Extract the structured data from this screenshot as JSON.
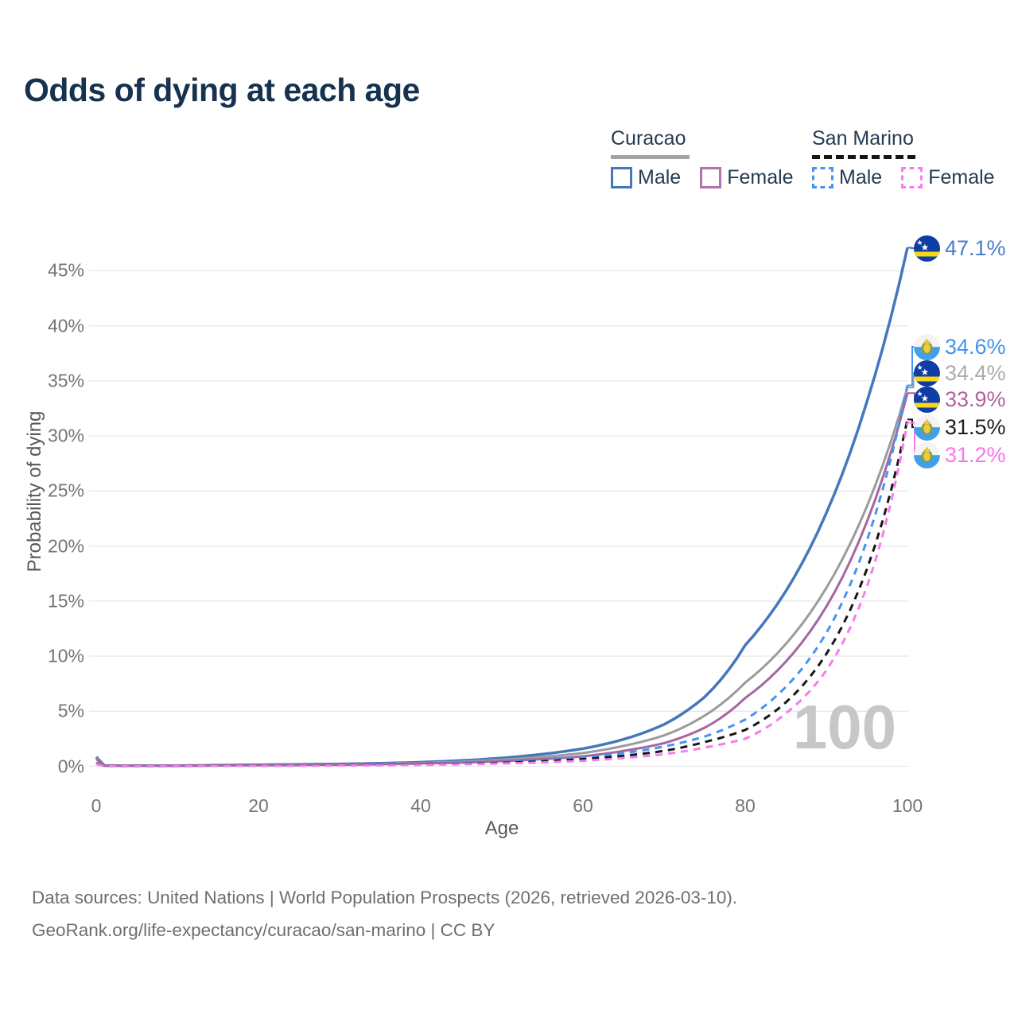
{
  "title": "Odds of dying at each age",
  "legend": {
    "groups": [
      {
        "label": "Curacao",
        "line_style": "solid",
        "line_color": "#a3a3a3",
        "items": [
          {
            "label": "Male",
            "color": "#4577bd",
            "dashed": false
          },
          {
            "label": "Female",
            "color": "#b273ab",
            "dashed": false
          }
        ]
      },
      {
        "label": "San Marino",
        "line_style": "dashed",
        "line_color": "#161616",
        "items": [
          {
            "label": "Male",
            "color": "#4694f1",
            "dashed": true
          },
          {
            "label": "Female",
            "color": "#fb7bf0",
            "dashed": true
          }
        ]
      }
    ]
  },
  "watermark": "100",
  "chart_data": {
    "type": "line",
    "title": "Odds of dying at each age",
    "xlabel": "Age",
    "ylabel": "Probability of dying",
    "xlim": [
      0,
      100
    ],
    "ylim_percent": [
      0,
      47.5
    ],
    "grid": "horizontal",
    "legend_position": "top-right",
    "x_ticks": [
      0,
      20,
      40,
      60,
      80,
      100
    ],
    "y_ticks": [
      "0%",
      "5%",
      "10%",
      "15%",
      "20%",
      "25%",
      "30%",
      "35%",
      "40%",
      "45%"
    ],
    "ages": [
      0,
      1,
      5,
      10,
      15,
      20,
      25,
      30,
      35,
      40,
      45,
      50,
      55,
      60,
      65,
      70,
      75,
      80,
      85,
      90,
      95,
      100
    ],
    "series": [
      {
        "name": "Curacao Male",
        "country": "Curacao",
        "sex": "male",
        "color": "#4577bd",
        "dashed": false,
        "end_label": "47.1%",
        "values_percent": [
          0.85,
          0.07,
          0.05,
          0.06,
          0.1,
          0.14,
          0.17,
          0.21,
          0.27,
          0.37,
          0.52,
          0.75,
          1.1,
          1.6,
          2.45,
          3.8,
          6.3,
          11.0,
          15.9,
          23.0,
          33.1,
          47.1
        ]
      },
      {
        "name": "Curacao (both sexes)",
        "country": "Curacao",
        "sex": "both",
        "color": "#9b9b9b",
        "dashed": false,
        "end_label": "34.4%",
        "values_percent": [
          0.75,
          0.06,
          0.04,
          0.05,
          0.08,
          0.11,
          0.14,
          0.17,
          0.22,
          0.3,
          0.42,
          0.6,
          0.85,
          1.2,
          1.85,
          2.8,
          4.6,
          7.6,
          11.1,
          16.2,
          23.6,
          34.4
        ]
      },
      {
        "name": "Curacao Female",
        "country": "Curacao",
        "sex": "female",
        "color": "#a765a1",
        "dashed": false,
        "end_label": "33.9%",
        "values_percent": [
          0.65,
          0.05,
          0.04,
          0.05,
          0.07,
          0.09,
          0.11,
          0.14,
          0.18,
          0.25,
          0.33,
          0.47,
          0.65,
          0.9,
          1.4,
          2.1,
          3.5,
          6.2,
          9.5,
          14.5,
          22.2,
          33.9
        ]
      },
      {
        "name": "San Marino Male",
        "country": "San Marino",
        "sex": "male",
        "color": "#4694f1",
        "dashed": true,
        "end_label": "34.6%",
        "values_percent": [
          0.3,
          0.03,
          0.02,
          0.03,
          0.05,
          0.07,
          0.09,
          0.11,
          0.14,
          0.19,
          0.27,
          0.38,
          0.55,
          0.8,
          1.2,
          1.8,
          2.7,
          4.25,
          7.2,
          12.1,
          20.5,
          34.6
        ]
      },
      {
        "name": "San Marino (both sexes)",
        "country": "San Marino",
        "sex": "both",
        "color": "#161616",
        "dashed": true,
        "end_label": "31.5%",
        "values_percent": [
          0.26,
          0.03,
          0.02,
          0.02,
          0.04,
          0.05,
          0.07,
          0.09,
          0.12,
          0.16,
          0.22,
          0.31,
          0.45,
          0.65,
          0.95,
          1.4,
          2.2,
          3.3,
          5.8,
          10.2,
          17.9,
          31.5
        ]
      },
      {
        "name": "San Marino Female",
        "country": "San Marino",
        "sex": "female",
        "color": "#f97aec",
        "dashed": true,
        "end_label": "31.2%",
        "values_percent": [
          0.22,
          0.02,
          0.01,
          0.02,
          0.03,
          0.04,
          0.05,
          0.07,
          0.09,
          0.13,
          0.18,
          0.25,
          0.35,
          0.5,
          0.75,
          1.1,
          1.7,
          2.5,
          4.8,
          8.7,
          16.3,
          31.2
        ]
      }
    ]
  },
  "end_labels": [
    {
      "value": "47.1%",
      "flag": "curacao",
      "color": "#4a7dc9",
      "series": 0
    },
    {
      "value": "34.6%",
      "flag": "san-marino",
      "color": "#4493f0",
      "series": 3
    },
    {
      "value": "34.4%",
      "flag": "curacao",
      "color": "#ababab",
      "series": 1
    },
    {
      "value": "33.9%",
      "flag": "curacao",
      "color": "#b2619f",
      "series": 2
    },
    {
      "value": "31.5%",
      "flag": "san-marino",
      "color": "#1f1f1f",
      "series": 4
    },
    {
      "value": "31.2%",
      "flag": "san-marino",
      "color": "#fa75ee",
      "series": 5
    }
  ],
  "footer": {
    "line1": "Data sources: United Nations | World Population Prospects (2026, retrieved 2026-03-10).",
    "line2": "GeoRank.org/life-expectancy/curacao/san-marino | CC BY"
  }
}
